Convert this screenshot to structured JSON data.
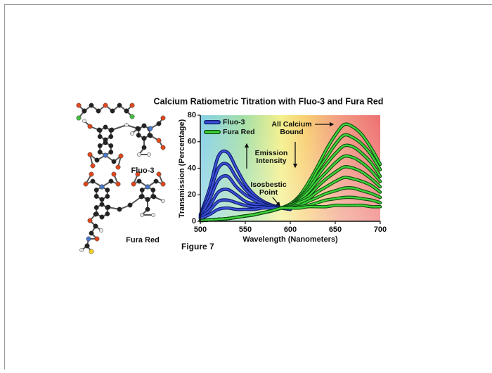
{
  "chart_data": {
    "type": "line",
    "title": "Calcium Ratiometric Titration with Fluo-3 and Fura Red",
    "x_label": "Wavelength (Nanometers)",
    "y_label": "Transmission (Percentage)",
    "xlim": [
      500,
      700
    ],
    "xticks": [
      500,
      550,
      600,
      650,
      700
    ],
    "ylim": [
      0,
      80
    ],
    "yticks": [
      0,
      20,
      40,
      60,
      80
    ],
    "legend": "upper left",
    "x": [
      500,
      510,
      520,
      530,
      540,
      550,
      560,
      570,
      580,
      590,
      600,
      610,
      620,
      630,
      640,
      650,
      660,
      670,
      680,
      690,
      700
    ],
    "series": [
      {
        "name": "Fluo-3",
        "color": "#3a4fd8",
        "values": [
          [
            5,
            24,
            49,
            52,
            40,
            28,
            20,
            15,
            12,
            10,
            9,
            null,
            null,
            null,
            null,
            null,
            null,
            null,
            null,
            null,
            null
          ],
          [
            4,
            20,
            40,
            43,
            33,
            24,
            18,
            14,
            12,
            10,
            9,
            null,
            null,
            null,
            null,
            null,
            null,
            null,
            null,
            null,
            null
          ],
          [
            4,
            16,
            31,
            34,
            26,
            20,
            16,
            13,
            11,
            10,
            9,
            null,
            null,
            null,
            null,
            null,
            null,
            null,
            null,
            null,
            null
          ],
          [
            3,
            11,
            22,
            24,
            20,
            15,
            13,
            12,
            11,
            10,
            9,
            null,
            null,
            null,
            null,
            null,
            null,
            null,
            null,
            null,
            null
          ],
          [
            3,
            8,
            15,
            16,
            14,
            12,
            11,
            11,
            10,
            10,
            9,
            null,
            null,
            null,
            null,
            null,
            null,
            null,
            null,
            null,
            null
          ],
          [
            2,
            5,
            9,
            10,
            9,
            9,
            9,
            10,
            10,
            10,
            9,
            null,
            null,
            null,
            null,
            null,
            null,
            null,
            null,
            null,
            null
          ]
        ]
      },
      {
        "name": "Fura Red",
        "color": "#3ed43a",
        "values": [
          [
            0.5,
            1,
            1.5,
            2,
            3,
            4,
            5,
            6.5,
            8,
            10,
            13,
            19,
            29,
            41,
            54,
            65,
            73,
            71,
            65,
            55,
            43
          ],
          [
            0.5,
            1,
            1.5,
            2,
            3,
            4,
            5,
            6.5,
            8,
            10,
            13,
            18,
            26,
            38,
            48,
            58,
            65,
            63,
            58,
            50,
            39
          ],
          [
            0.5,
            1,
            1.5,
            2,
            3,
            4,
            5,
            6.5,
            8,
            10,
            12,
            17,
            24,
            34,
            43,
            51,
            57,
            56,
            51,
            44,
            34
          ],
          [
            0.5,
            1,
            1.5,
            2,
            3,
            4,
            5,
            6.5,
            8,
            10,
            12,
            16,
            22,
            30,
            37,
            44,
            49,
            48,
            44,
            38,
            30
          ],
          [
            0.5,
            1,
            1.5,
            2,
            3,
            4,
            5,
            6.5,
            8,
            10,
            12,
            15,
            19,
            26,
            32,
            37,
            41,
            40,
            37,
            32,
            26
          ],
          [
            0.5,
            1,
            1.5,
            2,
            3,
            4,
            5,
            6.5,
            8,
            10,
            11,
            14,
            17,
            22,
            26,
            30,
            33,
            32,
            30,
            27,
            22
          ],
          [
            0.5,
            1,
            1.5,
            2,
            3,
            4,
            5,
            6.5,
            8,
            10,
            11,
            12,
            15,
            18,
            21,
            23,
            25,
            25,
            23,
            21,
            18
          ],
          [
            0.5,
            1,
            1.5,
            2,
            3,
            4,
            5,
            6.5,
            8,
            10,
            10,
            11,
            12,
            14,
            16,
            17,
            18,
            18,
            17,
            16,
            14
          ],
          [
            0.5,
            1,
            1.5,
            2,
            3,
            4,
            5,
            6.5,
            8,
            10,
            10,
            10,
            11,
            11,
            11,
            12,
            12,
            12,
            12,
            11,
            11
          ]
        ]
      }
    ],
    "annotations": [
      {
        "lines": [
          "All Calcium",
          "Bound"
        ]
      },
      {
        "lines": [
          "Emission",
          "Intensity"
        ]
      },
      {
        "lines": [
          "Isosbestic",
          "Point"
        ]
      }
    ]
  },
  "figure": {
    "label": "Figure 7",
    "molecules": [
      "Fluo-3",
      "Fura Red"
    ]
  }
}
